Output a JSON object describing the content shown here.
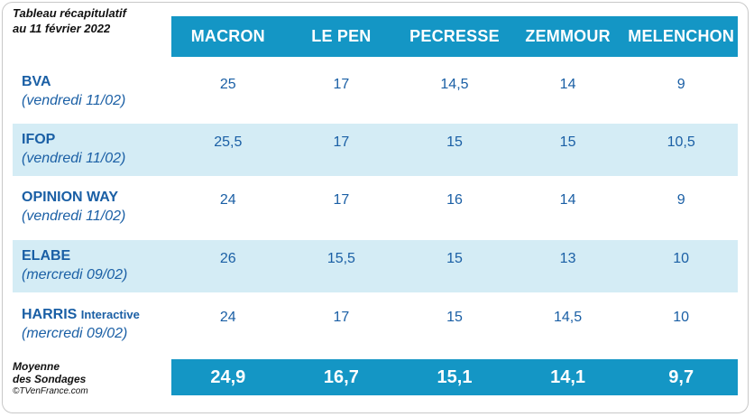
{
  "title_line1": "Tableau récapitulatif",
  "title_line2": "au 11 février 2022",
  "candidates": [
    "MACRON",
    "LE PEN",
    "PECRESSE",
    "ZEMMOUR",
    "MELENCHON"
  ],
  "polls": [
    {
      "name": "BVA",
      "name_suffix": "",
      "date": "(vendredi 11/02)",
      "values": [
        "25",
        "17",
        "14,5",
        "14",
        "9"
      ]
    },
    {
      "name": "IFOP",
      "name_suffix": "",
      "date": "(vendredi 11/02)",
      "values": [
        "25,5",
        "17",
        "15",
        "15",
        "10,5"
      ]
    },
    {
      "name": "OPINION WAY",
      "name_suffix": "",
      "date": "(vendredi 11/02)",
      "values": [
        "24",
        "17",
        "16",
        "14",
        "9"
      ]
    },
    {
      "name": "ELABE",
      "name_suffix": "",
      "date": "(mercredi 09/02)",
      "values": [
        "26",
        "15,5",
        "15",
        "13",
        "10"
      ]
    },
    {
      "name": "HARRIS",
      "name_suffix": "Interactive",
      "date": "(mercredi 09/02)",
      "values": [
        "24",
        "17",
        "15",
        "14,5",
        "10"
      ]
    }
  ],
  "average_label_line1": "Moyenne",
  "average_label_line2": "des Sondages",
  "credit": "©TVenFrance.com",
  "averages": [
    "24,9",
    "16,7",
    "15,1",
    "14,1",
    "9,7"
  ],
  "colors": {
    "header_bg": "#1496c5",
    "row_shade": "#d4ecf5",
    "text_blue": "#1a5fa5"
  }
}
